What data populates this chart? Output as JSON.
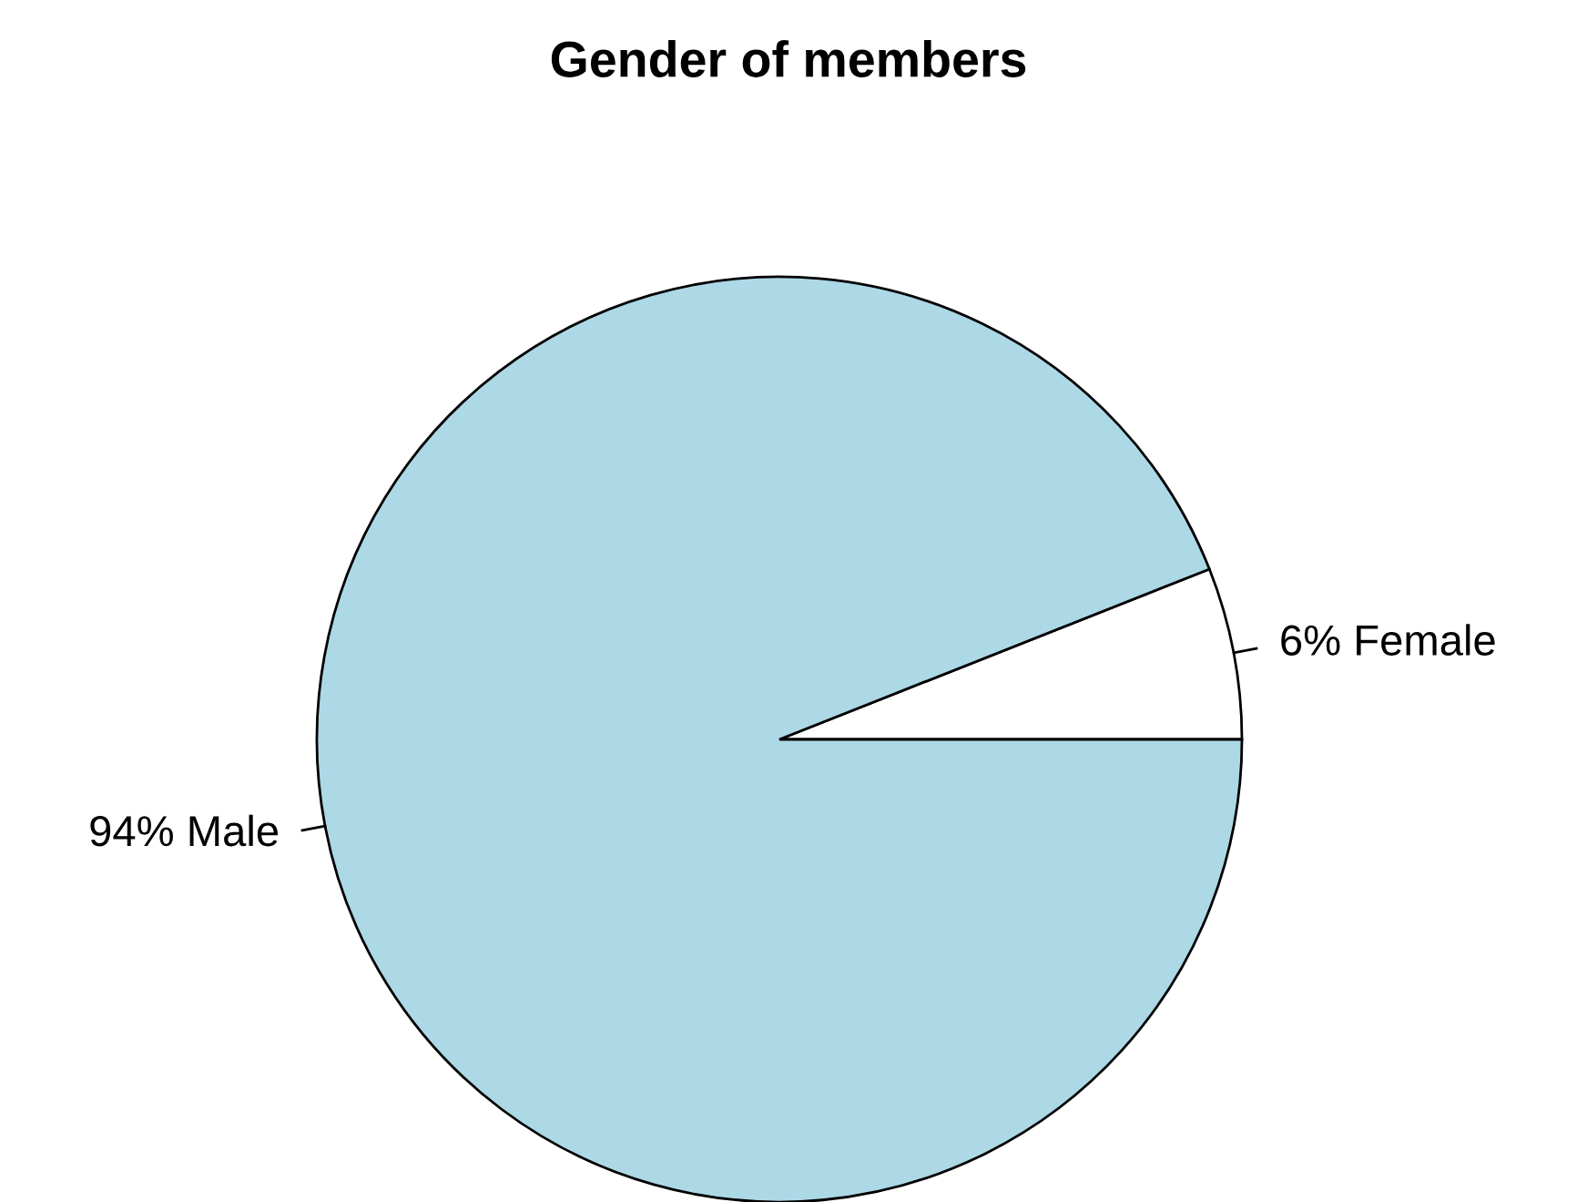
{
  "chart_data": {
    "type": "pie",
    "title": "Gender of members",
    "categories": [
      "6% Female",
      "94% Male"
    ],
    "values": [
      6,
      94
    ],
    "colors": [
      "#ffffff",
      "#add8e6"
    ]
  }
}
